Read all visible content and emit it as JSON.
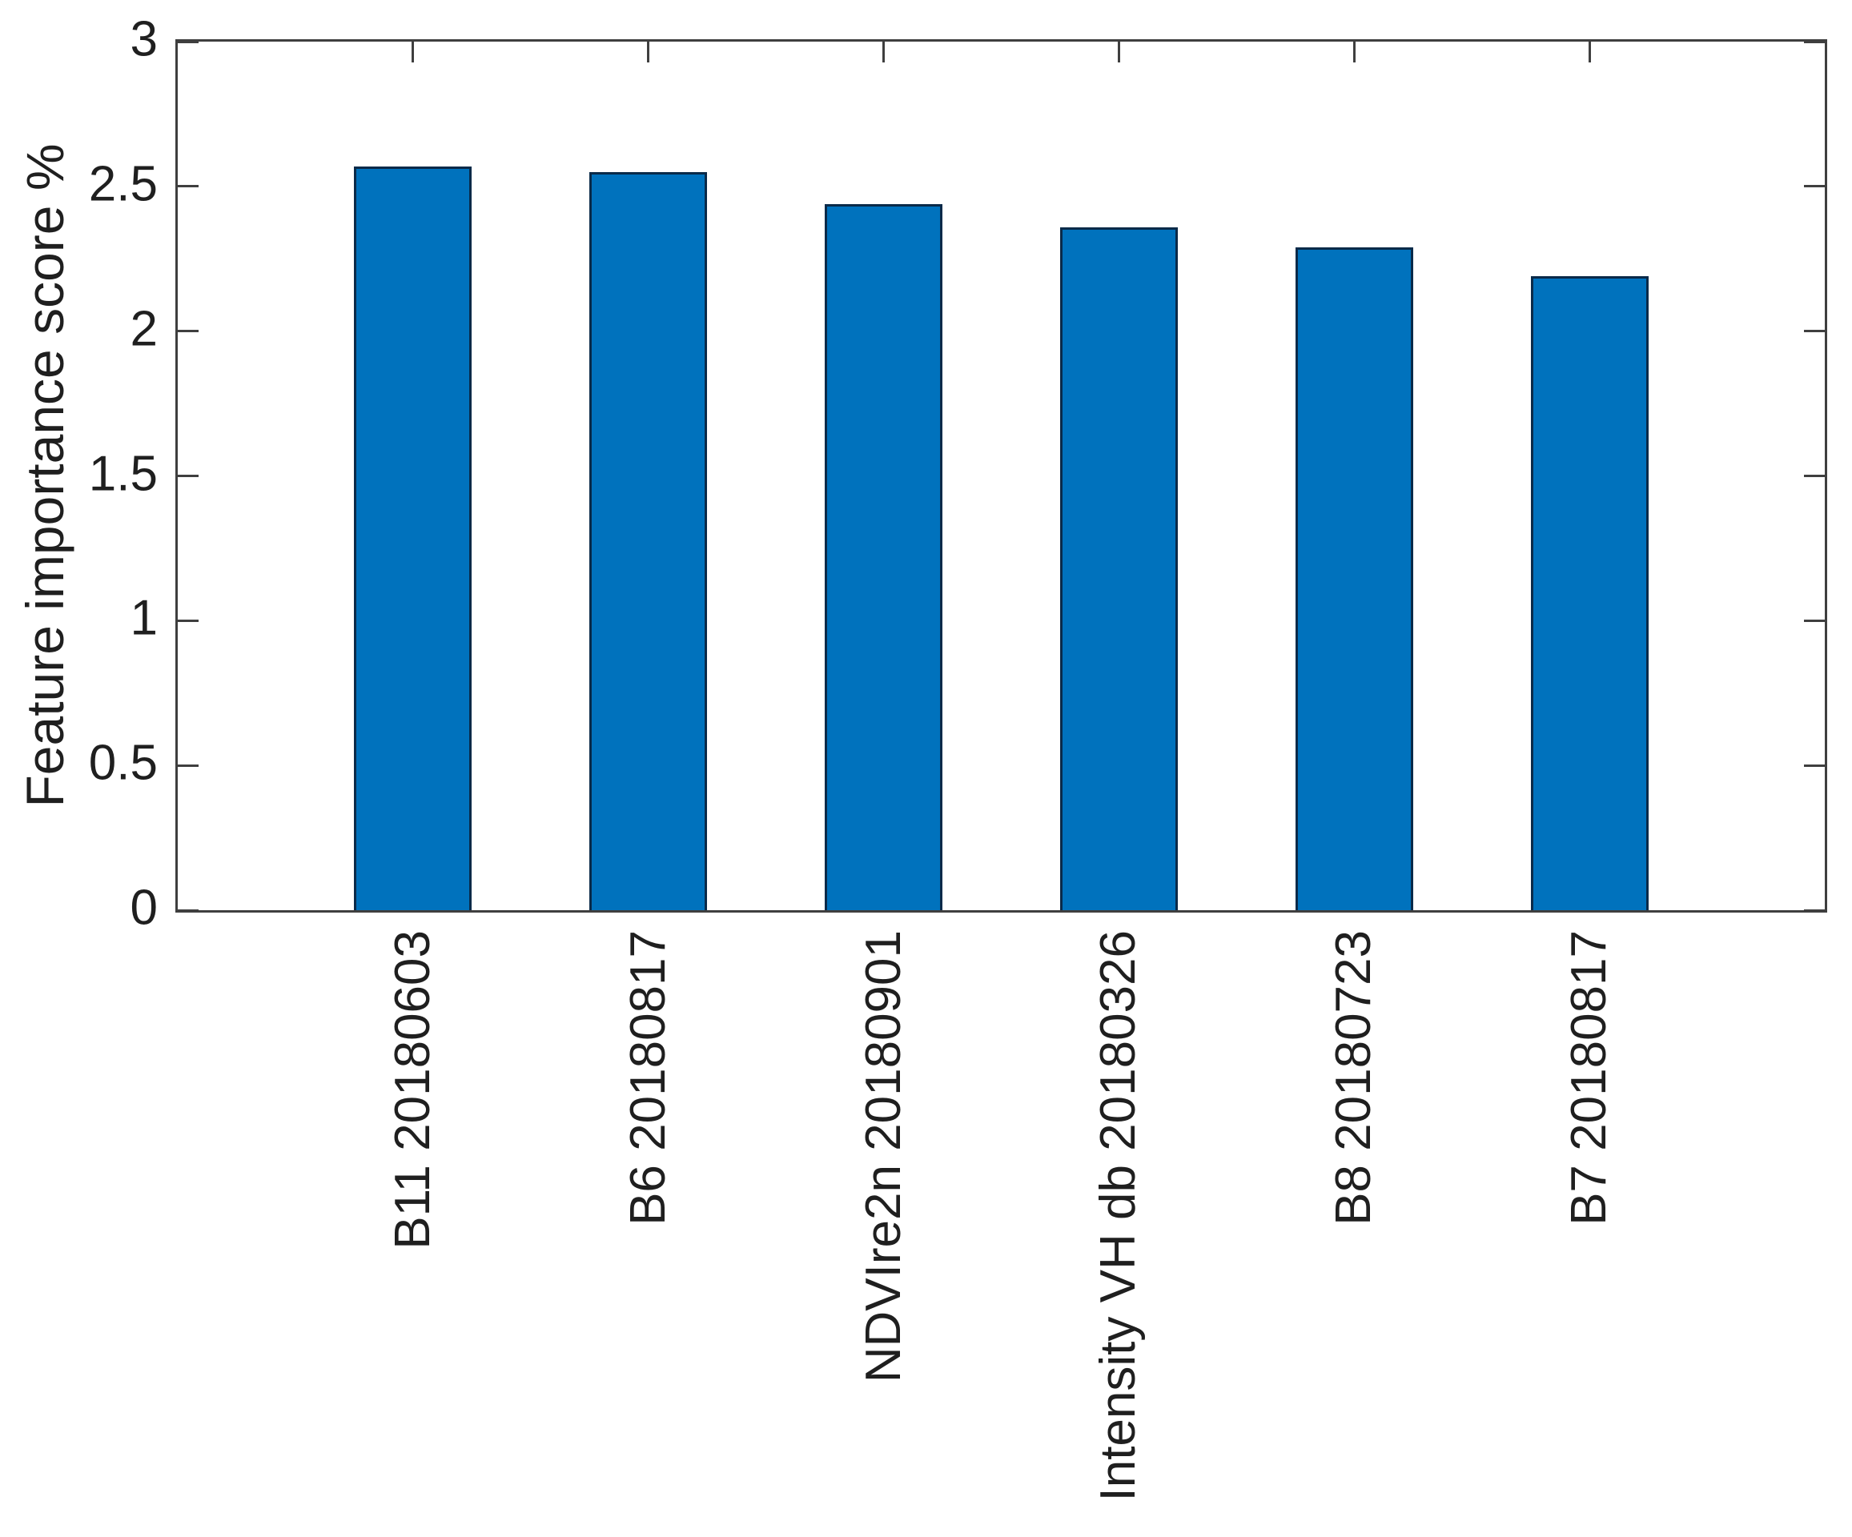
{
  "figure": {
    "background": "#ffffff",
    "axis_color": "#3f3f3f",
    "text_color": "#1f1f1f"
  },
  "chart_data": {
    "type": "bar",
    "title": "",
    "xlabel": "",
    "ylabel": "Feature importance score %",
    "categories": [
      "B11 20180603",
      "B6 20180817",
      "NDVIre2n 20180901",
      "Intensity VH db 20180326",
      "B8 20180723",
      "B7 20180817"
    ],
    "values": [
      2.57,
      2.55,
      2.44,
      2.36,
      2.29,
      2.19
    ],
    "ylim": [
      0,
      3
    ],
    "yticks": [
      0,
      0.5,
      1,
      1.5,
      2,
      2.5,
      3
    ],
    "ytick_labels": [
      "0",
      "0.5",
      "1",
      "1.5",
      "2",
      "2.5",
      "3"
    ],
    "grid": false,
    "legend": null,
    "tick_direction": "in",
    "box": true,
    "bar_fill": "#0072BD",
    "bar_edge": "#0a2a49",
    "bar_width_fraction": 0.5
  }
}
